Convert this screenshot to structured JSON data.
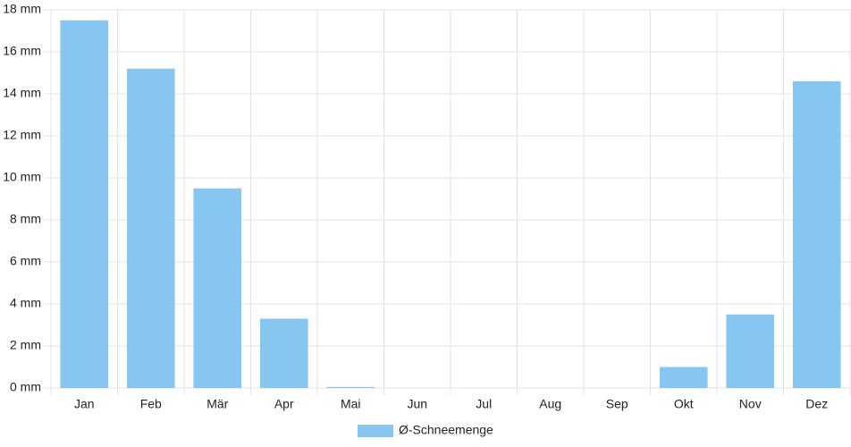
{
  "chart_data": {
    "type": "bar",
    "categories": [
      "Jan",
      "Feb",
      "Mär",
      "Apr",
      "Mai",
      "Jun",
      "Jul",
      "Aug",
      "Sep",
      "Okt",
      "Nov",
      "Dez"
    ],
    "series": [
      {
        "name": "Ø-Schneemenge",
        "color": "#88c6f2",
        "values": [
          17.5,
          15.2,
          9.5,
          3.3,
          0.05,
          0,
          0,
          0,
          0,
          1.0,
          3.5,
          14.6
        ]
      }
    ],
    "ylim": [
      0,
      18
    ],
    "yticks": [
      {
        "value": 0,
        "label": "0 mm"
      },
      {
        "value": 2,
        "label": "2 mm"
      },
      {
        "value": 4,
        "label": "4 mm"
      },
      {
        "value": 6,
        "label": "6 mm"
      },
      {
        "value": 8,
        "label": "8 mm"
      },
      {
        "value": 10,
        "label": "10 mm"
      },
      {
        "value": 12,
        "label": "12 mm"
      },
      {
        "value": 14,
        "label": "14 mm"
      },
      {
        "value": 16,
        "label": "16 mm"
      },
      {
        "value": 18,
        "label": "18 mm"
      }
    ],
    "grid": true,
    "legend": "bottom"
  }
}
